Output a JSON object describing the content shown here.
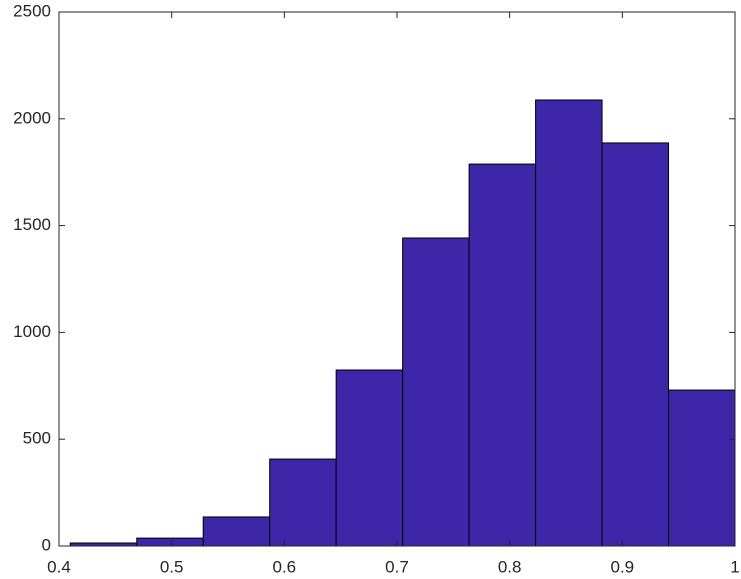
{
  "chart_data": {
    "type": "histogram",
    "bins": [
      0.41,
      0.469,
      0.528,
      0.587,
      0.646,
      0.705,
      0.764,
      0.823,
      0.882,
      0.941,
      1.0
    ],
    "values": [
      14,
      37,
      136,
      407,
      824,
      1442,
      1788,
      2088,
      1887,
      730
    ],
    "color": "#3d26a8",
    "xlim": [
      0.4,
      1
    ],
    "xticks": [
      0.4,
      0.5,
      0.6,
      0.7,
      0.8,
      0.9,
      1
    ],
    "ylim": [
      0,
      2500
    ],
    "yticks": [
      0,
      500,
      1000,
      1500,
      2000,
      2500
    ],
    "grid": false
  }
}
